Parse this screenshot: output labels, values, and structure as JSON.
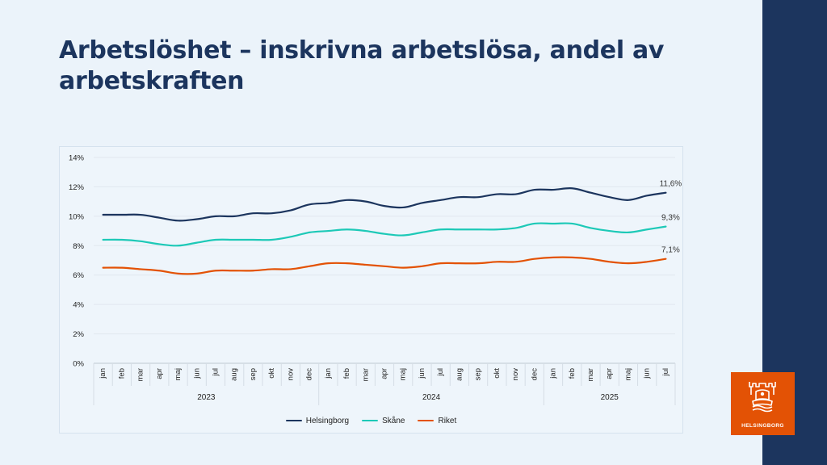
{
  "slide": {
    "title": "Arbetslöshet – inskrivna arbetslösa, andel av arbetskraften",
    "logo_text": "HELSINGBORG",
    "colors": {
      "band": "#1C355E",
      "logo_bg": "#E35205",
      "title": "#1C355E"
    }
  },
  "chart_data": {
    "type": "line",
    "title": "",
    "xlabel": "",
    "ylabel": "",
    "ylim": [
      0,
      14
    ],
    "y_ticks": [
      "0%",
      "2%",
      "4%",
      "6%",
      "8%",
      "10%",
      "12%",
      "14%"
    ],
    "y_tick_values": [
      0,
      2,
      4,
      6,
      8,
      10,
      12,
      14
    ],
    "grid": true,
    "legend_position": "bottom",
    "categories": [
      "jan",
      "feb",
      "mar",
      "apr",
      "maj",
      "jun",
      "jul",
      "aug",
      "sep",
      "okt",
      "nov",
      "dec",
      "jan",
      "feb",
      "mar",
      "apr",
      "maj",
      "jun",
      "jul",
      "aug",
      "sep",
      "okt",
      "nov",
      "dec",
      "jan",
      "feb",
      "mar",
      "apr",
      "maj",
      "jun",
      "jul"
    ],
    "year_groups": [
      {
        "label": "2023",
        "count": 12
      },
      {
        "label": "2024",
        "count": 12
      },
      {
        "label": "2025",
        "count": 7
      }
    ],
    "series": [
      {
        "name": "Helsingborg",
        "color": "#1C355E",
        "end_label": "11,6%",
        "values": [
          10.1,
          10.1,
          10.1,
          9.9,
          9.7,
          9.8,
          10.0,
          10.0,
          10.2,
          10.2,
          10.4,
          10.8,
          10.9,
          11.1,
          11.0,
          10.7,
          10.6,
          10.9,
          11.1,
          11.3,
          11.3,
          11.5,
          11.5,
          11.8,
          11.8,
          11.9,
          11.6,
          11.3,
          11.1,
          11.4,
          11.6
        ]
      },
      {
        "name": "Skåne",
        "color": "#1DC9B7",
        "end_label": "9,3%",
        "values": [
          8.4,
          8.4,
          8.3,
          8.1,
          8.0,
          8.2,
          8.4,
          8.4,
          8.4,
          8.4,
          8.6,
          8.9,
          9.0,
          9.1,
          9.0,
          8.8,
          8.7,
          8.9,
          9.1,
          9.1,
          9.1,
          9.1,
          9.2,
          9.5,
          9.5,
          9.5,
          9.2,
          9.0,
          8.9,
          9.1,
          9.3
        ]
      },
      {
        "name": "Riket",
        "color": "#E35205",
        "end_label": "7,1%",
        "values": [
          6.5,
          6.5,
          6.4,
          6.3,
          6.1,
          6.1,
          6.3,
          6.3,
          6.3,
          6.4,
          6.4,
          6.6,
          6.8,
          6.8,
          6.7,
          6.6,
          6.5,
          6.6,
          6.8,
          6.8,
          6.8,
          6.9,
          6.9,
          7.1,
          7.2,
          7.2,
          7.1,
          6.9,
          6.8,
          6.9,
          7.1
        ]
      }
    ]
  }
}
